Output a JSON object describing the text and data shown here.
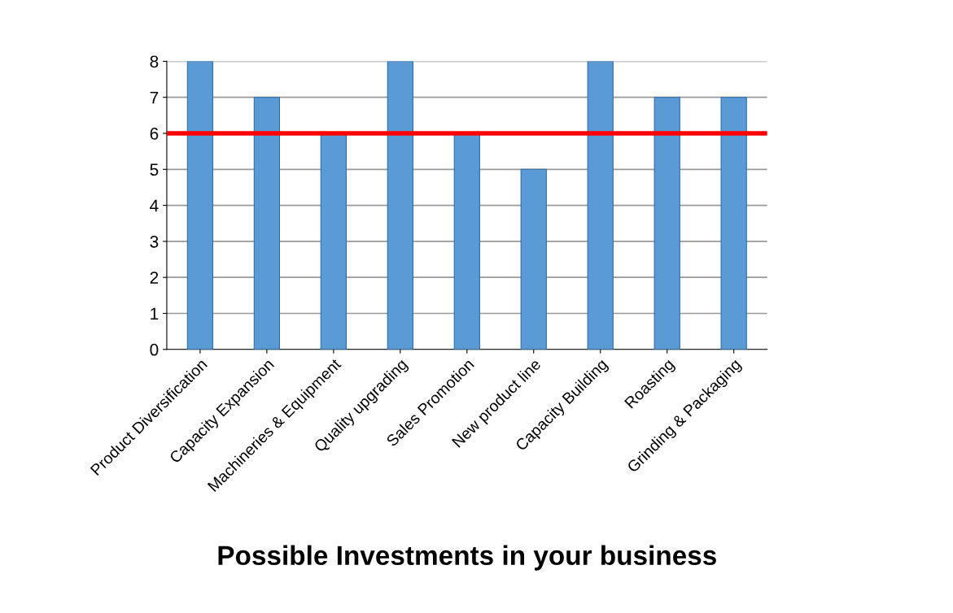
{
  "chart_data": {
    "type": "bar",
    "xlabel": "Possible Investments in your business",
    "categories": [
      "Product Diversification",
      "Capacity Expansion",
      "Machineries & Equipment",
      "Quality upgrading",
      "Sales Promotion",
      "New product line",
      "Capacity Building",
      "Roasting",
      "Grinding & Packaging"
    ],
    "values": [
      8,
      7,
      6,
      8,
      6,
      5,
      8,
      7,
      7
    ],
    "color": "#5b9bd5",
    "ylim": [
      0,
      8
    ],
    "yticks": [
      0,
      1,
      2,
      3,
      4,
      5,
      6,
      7,
      8
    ],
    "grid": "y",
    "ref_lines": [
      {
        "axis": "y",
        "value": 6,
        "color": "#ff0000",
        "line_style": "solid"
      }
    ]
  }
}
